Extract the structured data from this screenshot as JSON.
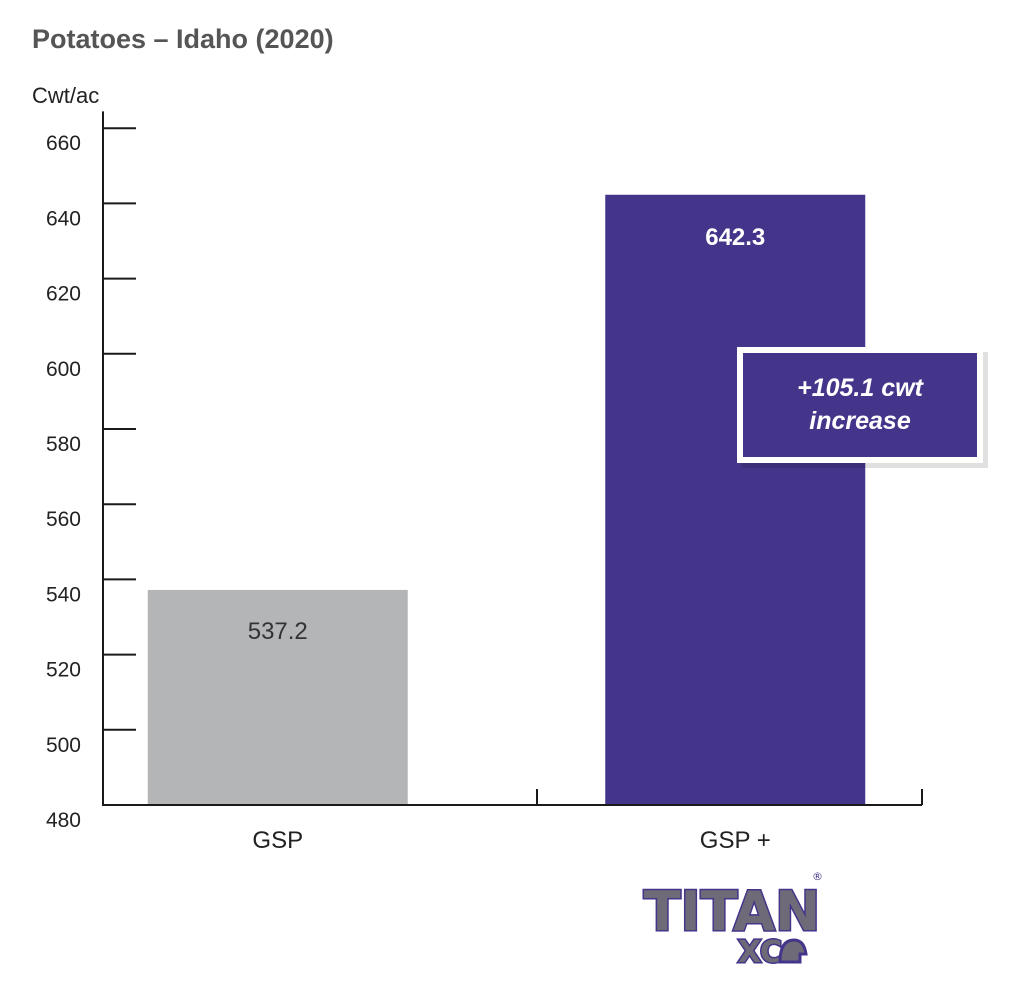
{
  "colors": {
    "gsp_bar": "#b4b5b7",
    "titan_bar": "#45358a",
    "axis": "#1a1a1a",
    "title": "#555555",
    "logo_fill": "#6f6a78",
    "logo_outline": "#45358a"
  },
  "chart_data": {
    "type": "bar",
    "title": "Potatoes – Idaho (2020)",
    "ylabel": "Cwt/ac",
    "xlabel": "",
    "ylim": [
      480,
      665
    ],
    "yticks": [
      480,
      500,
      520,
      540,
      560,
      580,
      600,
      620,
      640,
      660
    ],
    "categories": [
      "GSP",
      "GSP +"
    ],
    "values": [
      537.2,
      642.3
    ],
    "value_labels": [
      "537.2",
      "642.3"
    ],
    "annotation": {
      "line1": "+105.1 cwt",
      "line2": "increase"
    },
    "grid": false,
    "legend": "none"
  },
  "logo": {
    "main_text": "TITAN",
    "sub_text": "XC",
    "registered_mark": "®"
  }
}
